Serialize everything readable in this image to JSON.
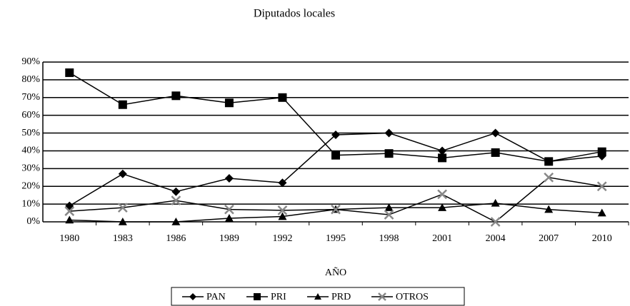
{
  "chart_data": {
    "type": "line",
    "title": "Diputados locales",
    "x_label": "AÑO",
    "categories": [
      "1980",
      "1983",
      "1986",
      "1989",
      "1992",
      "1995",
      "1998",
      "2001",
      "2004",
      "2007",
      "2010"
    ],
    "series": [
      {
        "name": "PAN",
        "color": "#000000",
        "marker": "diamond",
        "values": [
          9,
          27,
          17,
          24.5,
          22,
          49,
          50,
          40,
          50,
          34,
          37
        ]
      },
      {
        "name": "PRI",
        "color": "#000000",
        "marker": "square",
        "values": [
          84,
          66,
          71,
          67,
          70,
          37.5,
          38.5,
          36,
          39,
          34,
          39.5
        ]
      },
      {
        "name": "PRD",
        "color": "#000000",
        "marker": "triangle",
        "values": [
          1,
          0,
          0,
          2,
          3,
          7,
          8,
          8,
          10.5,
          7,
          5
        ]
      },
      {
        "name": "OTROS",
        "color": "#000000",
        "marker": "x",
        "values": [
          6,
          8,
          12,
          7,
          6.5,
          7,
          4,
          15.5,
          0,
          25,
          20
        ]
      }
    ],
    "ylim": [
      0,
      90
    ],
    "yticks": [
      {
        "value": 0,
        "label": "0%"
      },
      {
        "value": 10,
        "label": "10%"
      },
      {
        "value": 20,
        "label": "20%"
      },
      {
        "value": 30,
        "label": "30%"
      },
      {
        "value": 40,
        "label": "40%"
      },
      {
        "value": 50,
        "label": "50%"
      },
      {
        "value": 60,
        "label": "60%"
      },
      {
        "value": 70,
        "label": "70%"
      },
      {
        "value": 80,
        "label": "80%"
      },
      {
        "value": 90,
        "label": "90%"
      }
    ],
    "grid": true,
    "legend": "bottom"
  }
}
